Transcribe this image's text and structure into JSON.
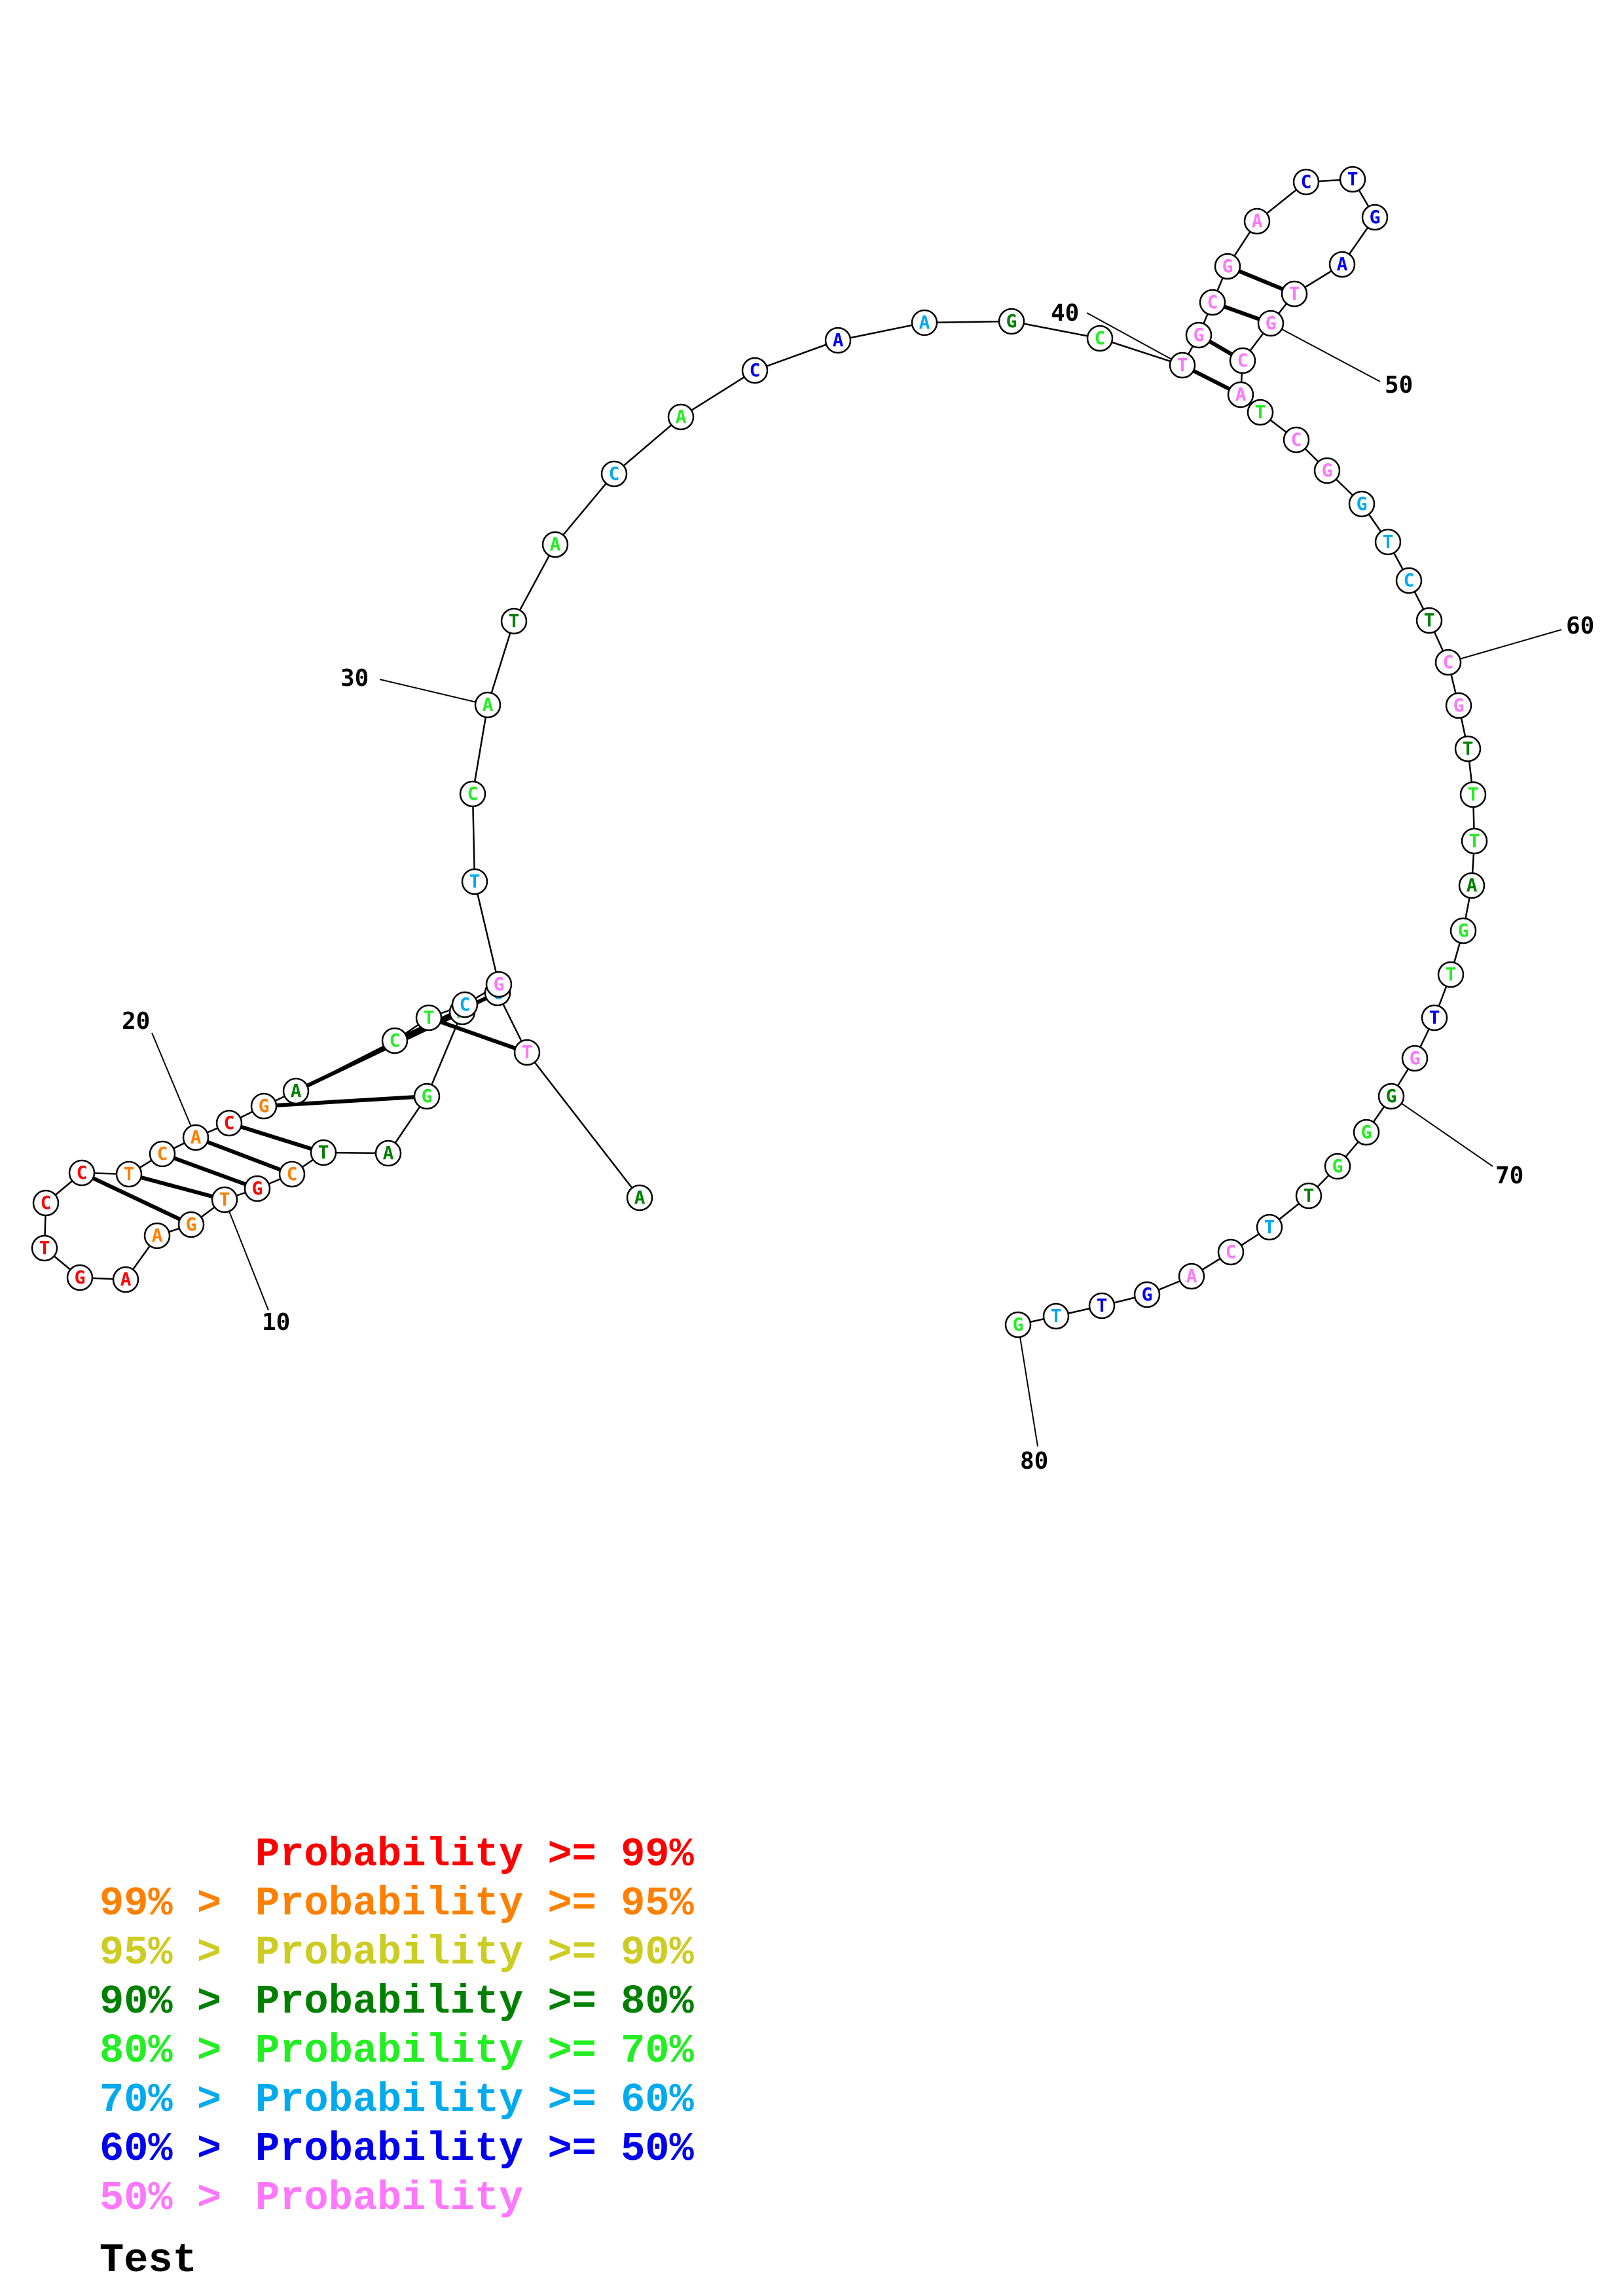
{
  "title": "Test",
  "legend": [
    {
      "prefix": "",
      "text": "Probability >= 99%",
      "color": "#ff0000"
    },
    {
      "prefix": "99% > ",
      "text": "Probability >= 95%",
      "color": "#ff8000"
    },
    {
      "prefix": "95% > ",
      "text": "Probability >= 90%",
      "color": "#cccc22"
    },
    {
      "prefix": "90% > ",
      "text": "Probability >= 80%",
      "color": "#008000"
    },
    {
      "prefix": "80% > ",
      "text": "Probability >= 70%",
      "color": "#22ee22"
    },
    {
      "prefix": "70% > ",
      "text": "Probability >= 60%",
      "color": "#00aaee"
    },
    {
      "prefix": "60% > ",
      "text": "Probability >= 50%",
      "color": "#0000ee"
    },
    {
      "prefix": "50% > ",
      "text": "Probability",
      "color": "#ff77ff"
    }
  ],
  "position_labels": [
    "10",
    "20",
    "30",
    "40",
    "50",
    "60",
    "70",
    "80"
  ],
  "sequence": [
    {
      "n": 1,
      "base": "A",
      "tier": 3
    },
    {
      "n": 2,
      "base": "T",
      "tier": 7
    },
    {
      "n": 3,
      "base": "G",
      "tier": 5
    },
    {
      "n": 4,
      "base": "A",
      "tier": 4
    },
    {
      "n": 5,
      "base": "G",
      "tier": 4
    },
    {
      "n": 6,
      "base": "A",
      "tier": 3
    },
    {
      "n": 7,
      "base": "T",
      "tier": 3
    },
    {
      "n": 8,
      "base": "C",
      "tier": 1
    },
    {
      "n": 9,
      "base": "G",
      "tier": 0
    },
    {
      "n": 10,
      "base": "T",
      "tier": 1
    },
    {
      "n": 11,
      "base": "G",
      "tier": 1
    },
    {
      "n": 12,
      "base": "A",
      "tier": 1
    },
    {
      "n": 13,
      "base": "A",
      "tier": 0
    },
    {
      "n": 14,
      "base": "G",
      "tier": 0
    },
    {
      "n": 15,
      "base": "T",
      "tier": 0
    },
    {
      "n": 16,
      "base": "C",
      "tier": 0
    },
    {
      "n": 17,
      "base": "C",
      "tier": 0
    },
    {
      "n": 18,
      "base": "T",
      "tier": 1
    },
    {
      "n": 19,
      "base": "C",
      "tier": 1
    },
    {
      "n": 20,
      "base": "A",
      "tier": 1
    },
    {
      "n": 21,
      "base": "C",
      "tier": 0
    },
    {
      "n": 22,
      "base": "G",
      "tier": 1
    },
    {
      "n": 23,
      "base": "A",
      "tier": 3
    },
    {
      "n": 24,
      "base": "C",
      "tier": 4
    },
    {
      "n": 25,
      "base": "T",
      "tier": 4
    },
    {
      "n": 26,
      "base": "C",
      "tier": 5
    },
    {
      "n": 27,
      "base": "G",
      "tier": 7
    },
    {
      "n": 28,
      "base": "T",
      "tier": 5
    },
    {
      "n": 29,
      "base": "C",
      "tier": 4
    },
    {
      "n": 30,
      "base": "A",
      "tier": 4
    },
    {
      "n": 31,
      "base": "T",
      "tier": 3
    },
    {
      "n": 32,
      "base": "A",
      "tier": 4
    },
    {
      "n": 33,
      "base": "C",
      "tier": 5
    },
    {
      "n": 34,
      "base": "A",
      "tier": 4
    },
    {
      "n": 35,
      "base": "C",
      "tier": 6
    },
    {
      "n": 36,
      "base": "A",
      "tier": 6
    },
    {
      "n": 37,
      "base": "A",
      "tier": 5
    },
    {
      "n": 38,
      "base": "G",
      "tier": 3
    },
    {
      "n": 39,
      "base": "C",
      "tier": 4
    },
    {
      "n": 40,
      "base": "T",
      "tier": 7
    },
    {
      "n": 41,
      "base": "G",
      "tier": 7
    },
    {
      "n": 42,
      "base": "C",
      "tier": 7
    },
    {
      "n": 43,
      "base": "G",
      "tier": 7
    },
    {
      "n": 44,
      "base": "A",
      "tier": 7
    },
    {
      "n": 45,
      "base": "C",
      "tier": 6
    },
    {
      "n": 46,
      "base": "T",
      "tier": 6
    },
    {
      "n": 47,
      "base": "G",
      "tier": 6
    },
    {
      "n": 48,
      "base": "A",
      "tier": 6
    },
    {
      "n": 49,
      "base": "T",
      "tier": 7
    },
    {
      "n": 50,
      "base": "G",
      "tier": 7
    },
    {
      "n": 51,
      "base": "C",
      "tier": 7
    },
    {
      "n": 52,
      "base": "A",
      "tier": 7
    },
    {
      "n": 53,
      "base": "T",
      "tier": 4
    },
    {
      "n": 54,
      "base": "C",
      "tier": 7
    },
    {
      "n": 55,
      "base": "G",
      "tier": 7
    },
    {
      "n": 56,
      "base": "G",
      "tier": 5
    },
    {
      "n": 57,
      "base": "T",
      "tier": 5
    },
    {
      "n": 58,
      "base": "C",
      "tier": 5
    },
    {
      "n": 59,
      "base": "T",
      "tier": 3
    },
    {
      "n": 60,
      "base": "C",
      "tier": 7
    },
    {
      "n": 61,
      "base": "G",
      "tier": 7
    },
    {
      "n": 62,
      "base": "T",
      "tier": 3
    },
    {
      "n": 63,
      "base": "T",
      "tier": 4
    },
    {
      "n": 64,
      "base": "T",
      "tier": 4
    },
    {
      "n": 65,
      "base": "A",
      "tier": 3
    },
    {
      "n": 66,
      "base": "G",
      "tier": 4
    },
    {
      "n": 67,
      "base": "T",
      "tier": 4
    },
    {
      "n": 68,
      "base": "T",
      "tier": 6
    },
    {
      "n": 69,
      "base": "G",
      "tier": 7
    },
    {
      "n": 70,
      "base": "G",
      "tier": 3
    },
    {
      "n": 71,
      "base": "G",
      "tier": 4
    },
    {
      "n": 72,
      "base": "G",
      "tier": 4
    },
    {
      "n": 73,
      "base": "T",
      "tier": 3
    },
    {
      "n": 74,
      "base": "T",
      "tier": 5
    },
    {
      "n": 75,
      "base": "C",
      "tier": 7
    },
    {
      "n": 76,
      "base": "A",
      "tier": 7
    },
    {
      "n": 77,
      "base": "G",
      "tier": 6
    },
    {
      "n": 78,
      "base": "T",
      "tier": 6
    },
    {
      "n": 79,
      "base": "T",
      "tier": 5
    },
    {
      "n": 80,
      "base": "G",
      "tier": 4
    }
  ],
  "pairs": [
    [
      2,
      25
    ],
    [
      3,
      24
    ],
    [
      4,
      23
    ],
    [
      5,
      22
    ],
    [
      7,
      21
    ],
    [
      8,
      20
    ],
    [
      9,
      19
    ],
    [
      10,
      18
    ],
    [
      11,
      17
    ],
    [
      40,
      52
    ],
    [
      41,
      51
    ],
    [
      42,
      50
    ],
    [
      43,
      49
    ]
  ]
}
